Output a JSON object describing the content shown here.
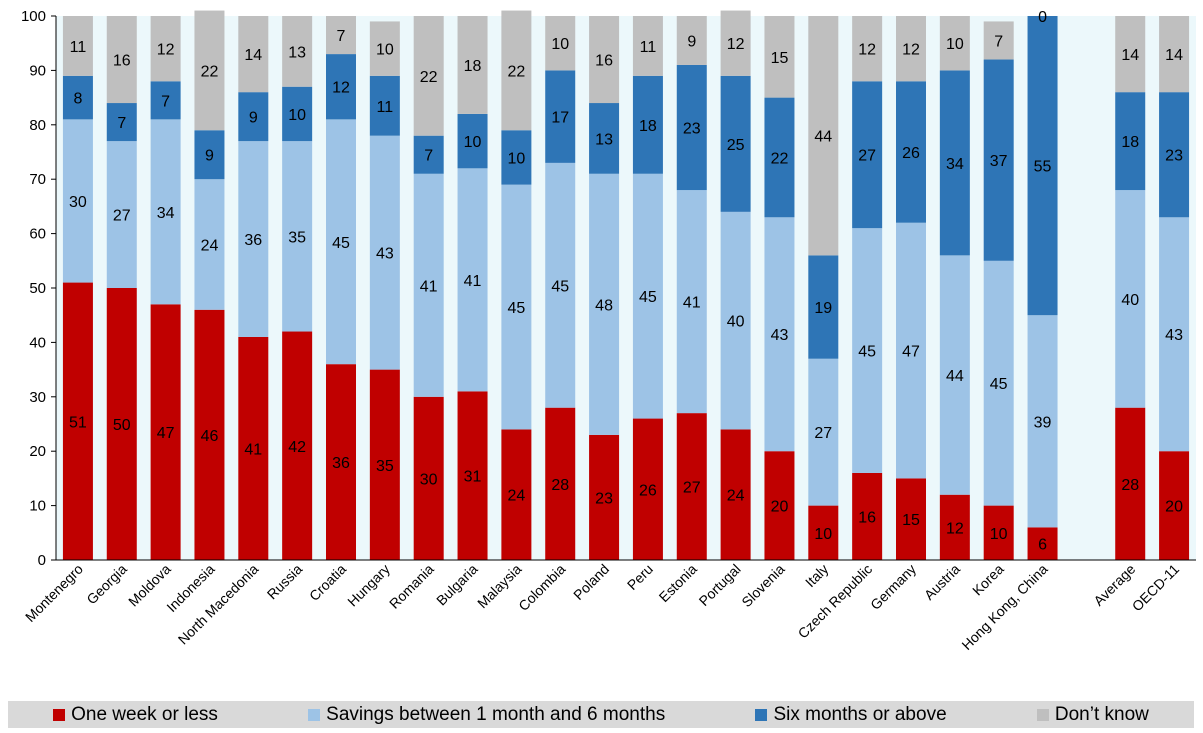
{
  "chart_data": {
    "type": "bar",
    "stacked": true,
    "title": "",
    "xlabel": "",
    "ylabel": "",
    "ylim": [
      0,
      100
    ],
    "yticks": [
      0,
      10,
      20,
      30,
      40,
      50,
      60,
      70,
      80,
      90,
      100
    ],
    "grid": false,
    "legend_position": "bottom",
    "categories": [
      "Montenegro",
      "Georgia",
      "Moldova",
      "Indonesia",
      "North Macedonia",
      "Russia",
      "Croatia",
      "Hungary",
      "Romania",
      "Bulgaria",
      "Malaysia",
      "Colombia",
      "Poland",
      "Peru",
      "Estonia",
      "Portugal",
      "Slovenia",
      "Italy",
      "Czech Republic",
      "Germany",
      "Austria",
      "Korea",
      "Hong Kong, China",
      "",
      "Average",
      "OECD-11"
    ],
    "series": [
      {
        "name": "One week or less",
        "color": "#c00000",
        "label_color": "#000000",
        "values": [
          51,
          50,
          47,
          46,
          41,
          42,
          36,
          35,
          30,
          31,
          24,
          28,
          23,
          26,
          27,
          24,
          20,
          10,
          16,
          15,
          12,
          10,
          6,
          null,
          28,
          20
        ]
      },
      {
        "name": "Savings between 1 month and 6 months",
        "color": "#9dc3e6",
        "label_color": "#000000",
        "values": [
          30,
          27,
          34,
          24,
          36,
          35,
          45,
          43,
          41,
          41,
          45,
          45,
          48,
          45,
          41,
          40,
          43,
          27,
          45,
          47,
          44,
          45,
          39,
          null,
          40,
          43
        ]
      },
      {
        "name": "Six months or above",
        "color": "#2e75b6",
        "label_color": "#000000",
        "values": [
          8,
          7,
          7,
          9,
          9,
          10,
          12,
          11,
          7,
          10,
          10,
          17,
          13,
          18,
          23,
          25,
          22,
          19,
          27,
          26,
          34,
          37,
          55,
          null,
          18,
          23
        ]
      },
      {
        "name": "Don’t know",
        "color": "#bfbfbf",
        "label_color": "#000000",
        "values": [
          11,
          16,
          12,
          22,
          14,
          13,
          7,
          10,
          22,
          18,
          22,
          10,
          16,
          11,
          9,
          12,
          15,
          44,
          12,
          12,
          10,
          7,
          0,
          null,
          14,
          14
        ]
      }
    ],
    "plot_background": "#ecf8fb"
  },
  "legend": {
    "items": [
      {
        "label": "One week or less",
        "color": "#c00000"
      },
      {
        "label": "Savings between 1 month and 6 months",
        "color": "#9dc3e6"
      },
      {
        "label": "Six months or above",
        "color": "#2e75b6"
      },
      {
        "label": "Don’t know",
        "color": "#bfbfbf"
      }
    ]
  }
}
